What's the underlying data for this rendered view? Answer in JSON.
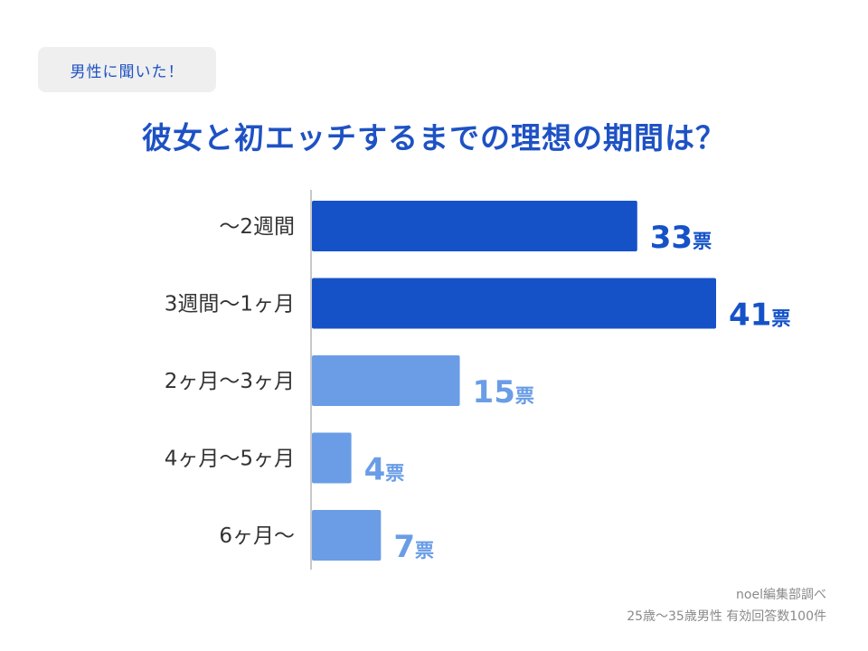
{
  "badge": {
    "label": "男性に聞いた！"
  },
  "title": "彼女と初エッチするまでの理想の期間は？",
  "chart_data": {
    "type": "bar",
    "orientation": "horizontal",
    "title": "彼女と初エッチするまでの理想の期間は？",
    "categories": [
      "～2週間",
      "3週間～1ヶ月",
      "2ヶ月～3ヶ月",
      "4ヶ月～5ヶ月",
      "6ヶ月～"
    ],
    "values": [
      33,
      41,
      15,
      4,
      7
    ],
    "value_unit": "票",
    "xlim": [
      0,
      41
    ],
    "grid": false,
    "colors": [
      "#1552c8",
      "#1552c8",
      "#6a9de6",
      "#6a9de6",
      "#6a9de6"
    ]
  },
  "footer": {
    "source": "noel編集部調べ",
    "note": "25歳～35歳男性 有効回答数100件"
  },
  "colors": {
    "accent": "#1e52c4",
    "dark_bar": "#1552c8",
    "light_bar": "#6a9de6",
    "axis": "#c8c8c8"
  }
}
